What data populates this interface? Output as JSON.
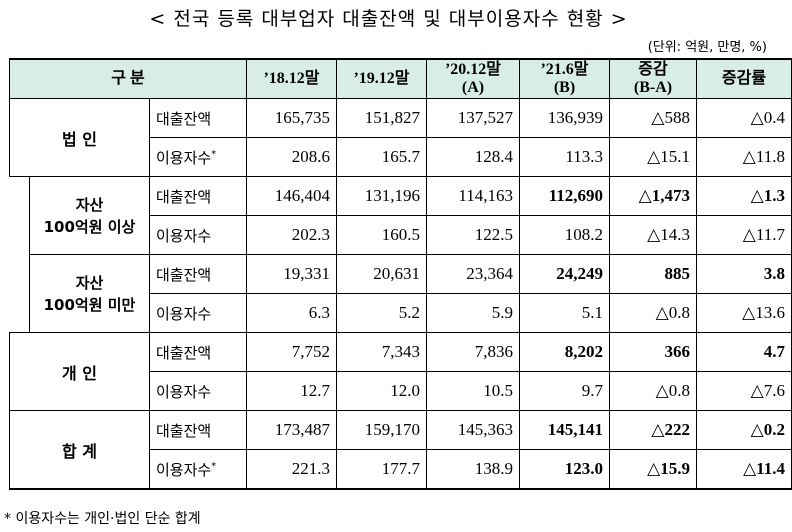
{
  "title": "< 전국 등록 대부업자 대출잔액 및 대부이용자수 현황 >",
  "unit": "(단위: 억원, 만명, %)",
  "header": {
    "category": "구    분",
    "col1": "’18.12말",
    "col2": "’19.12말",
    "col3_line1": "’20.12말",
    "col3_line2": "(A)",
    "col4_line1": "’21.6말",
    "col4_line2": "(B)",
    "col5_line1": "증감",
    "col5_line2": "(B-A)",
    "col6": "증감률"
  },
  "groups": {
    "corp": "법 인",
    "asset_over_line1": "자산",
    "asset_over_line2": "100억원 이상",
    "asset_under_line1": "자산",
    "asset_under_line2": "100억원 미만",
    "individual": "개 인",
    "total": "합 계"
  },
  "items": {
    "loan": "대출잔액",
    "users": "이용자수",
    "star": "*"
  },
  "rows": {
    "corp_loan": [
      "165,735",
      "151,827",
      "137,527",
      "136,939",
      "△588",
      "△0.4"
    ],
    "corp_users": [
      "208.6",
      "165.7",
      "128.4",
      "113.3",
      "△15.1",
      "△11.8"
    ],
    "over_loan": [
      "146,404",
      "131,196",
      "114,163",
      "112,690",
      "△1,473",
      "△1.3"
    ],
    "over_users": [
      "202.3",
      "160.5",
      "122.5",
      "108.2",
      "△14.3",
      "△11.7"
    ],
    "under_loan": [
      "19,331",
      "20,631",
      "23,364",
      "24,249",
      "885",
      "3.8"
    ],
    "under_users": [
      "6.3",
      "5.2",
      "5.9",
      "5.1",
      "△0.8",
      "△13.6"
    ],
    "ind_loan": [
      "7,752",
      "7,343",
      "7,836",
      "8,202",
      "366",
      "4.7"
    ],
    "ind_users": [
      "12.7",
      "12.0",
      "10.5",
      "9.7",
      "△0.8",
      "△7.6"
    ],
    "total_loan": [
      "173,487",
      "159,170",
      "145,363",
      "145,141",
      "△222",
      "△0.2"
    ],
    "total_users": [
      "221.3",
      "177.7",
      "138.9",
      "123.0",
      "△15.9",
      "△11.4"
    ]
  },
  "note": "* 이용자수는 개인·법인 단순 합계"
}
